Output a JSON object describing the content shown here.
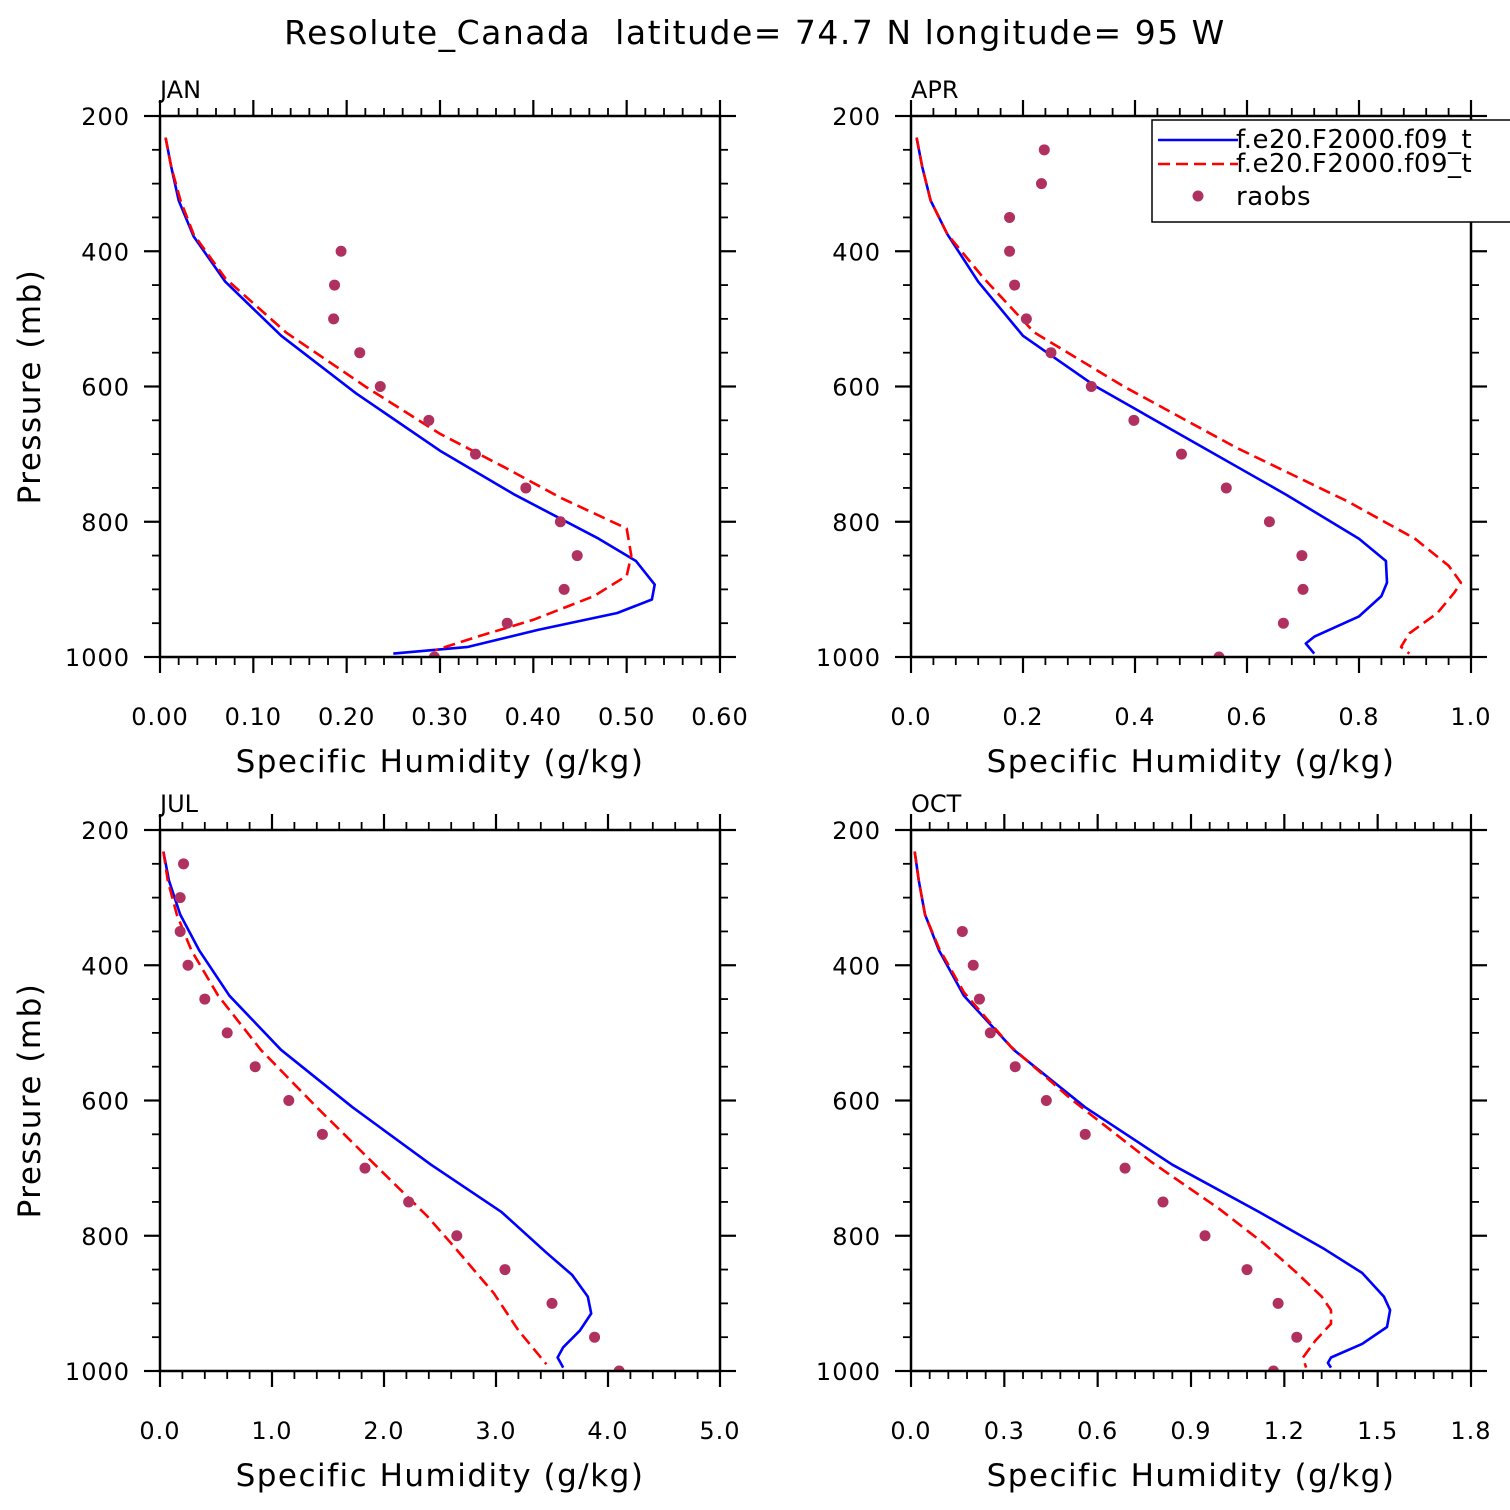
{
  "title": "Resolute_Canada  latitude= 74.7 N longitude= 95 W",
  "colors": {
    "model_1": "#0000ff",
    "model_2": "#ff0000",
    "raobs": "#b03060"
  },
  "legend": {
    "entries": [
      "f.e20.F2000.f09_t",
      "f.e20.F2000.f09_t",
      "raobs"
    ]
  },
  "chart_data": [
    {
      "type": "line",
      "panel": "JAN",
      "xlabel": "Specific Humidity (g/kg)",
      "ylabel": "Pressure (mb)",
      "xlim": [
        0,
        0.6
      ],
      "ylim": [
        1000,
        200
      ],
      "xticks": [
        "0.00",
        "0.10",
        "0.20",
        "0.30",
        "0.40",
        "0.50",
        "0.60"
      ],
      "xtick_values": [
        0,
        0.1,
        0.2,
        0.3,
        0.4,
        0.5,
        0.6
      ],
      "yticks": [
        "200",
        "400",
        "600",
        "800",
        "1000"
      ],
      "ytick_values": [
        200,
        400,
        600,
        800,
        1000
      ],
      "series": [
        {
          "name": "f.e20.F2000.f09_t",
          "style": "solid",
          "x": [
            0.006,
            0.012,
            0.02,
            0.036,
            0.07,
            0.13,
            0.21,
            0.3,
            0.38,
            0.47,
            0.51,
            0.53,
            0.527,
            0.49,
            0.405,
            0.33,
            0.25
          ],
          "y": [
            232,
            275,
            325,
            378,
            445,
            525,
            610,
            695,
            760,
            825,
            858,
            893,
            915,
            935,
            960,
            985,
            995
          ]
        },
        {
          "name": "f.e20.F2000.f09_t",
          "style": "dashed",
          "x": [
            0.006,
            0.012,
            0.022,
            0.036,
            0.07,
            0.135,
            0.22,
            0.3,
            0.37,
            0.43,
            0.5,
            0.505,
            0.5,
            0.465,
            0.4,
            0.34,
            0.295
          ],
          "y": [
            232,
            275,
            325,
            375,
            440,
            520,
            600,
            670,
            720,
            765,
            810,
            850,
            880,
            910,
            945,
            970,
            990
          ]
        },
        {
          "name": "raobs",
          "style": "markers",
          "x": [
            0.194,
            0.187,
            0.186,
            0.214,
            0.236,
            0.288,
            0.338,
            0.392,
            0.429,
            0.447,
            0.433,
            0.372,
            0.294
          ],
          "y": [
            400,
            450,
            500,
            550,
            600,
            650,
            700,
            750,
            800,
            850,
            900,
            950,
            1000
          ]
        }
      ]
    },
    {
      "type": "line",
      "panel": "APR",
      "xlabel": "Specific Humidity (g/kg)",
      "ylabel": "",
      "xlim": [
        0,
        1.0
      ],
      "ylim": [
        1000,
        200
      ],
      "xticks": [
        "0.0",
        "0.2",
        "0.4",
        "0.6",
        "0.8",
        "1.0"
      ],
      "xtick_values": [
        0,
        0.2,
        0.4,
        0.6,
        0.8,
        1.0
      ],
      "yticks": [
        "200",
        "400",
        "600",
        "800",
        "1000"
      ],
      "ytick_values": [
        200,
        400,
        600,
        800,
        1000
      ],
      "series": [
        {
          "name": "f.e20.F2000.f09_t",
          "style": "solid",
          "x": [
            0.01,
            0.02,
            0.035,
            0.065,
            0.12,
            0.2,
            0.33,
            0.5,
            0.67,
            0.8,
            0.848,
            0.85,
            0.84,
            0.8,
            0.72,
            0.705,
            0.72
          ],
          "y": [
            232,
            275,
            325,
            375,
            445,
            525,
            600,
            680,
            760,
            825,
            858,
            890,
            910,
            940,
            970,
            980,
            995
          ]
        },
        {
          "name": "f.e20.F2000.f09_t",
          "style": "dashed",
          "x": [
            0.01,
            0.02,
            0.035,
            0.065,
            0.13,
            0.22,
            0.38,
            0.58,
            0.78,
            0.9,
            0.96,
            0.982,
            0.97,
            0.94,
            0.89,
            0.875,
            0.89
          ],
          "y": [
            232,
            275,
            325,
            375,
            440,
            520,
            600,
            690,
            770,
            825,
            865,
            890,
            905,
            935,
            965,
            985,
            995
          ]
        },
        {
          "name": "raobs",
          "style": "markers",
          "x": [
            0.238,
            0.233,
            0.176,
            0.176,
            0.185,
            0.206,
            0.25,
            0.322,
            0.398,
            0.483,
            0.563,
            0.64,
            0.698,
            0.7,
            0.665,
            0.55
          ],
          "y": [
            250,
            300,
            350,
            400,
            450,
            500,
            550,
            600,
            650,
            700,
            750,
            800,
            850,
            900,
            950,
            1000
          ]
        }
      ]
    },
    {
      "type": "line",
      "panel": "JUL",
      "xlabel": "Specific Humidity (g/kg)",
      "ylabel": "Pressure (mb)",
      "xlim": [
        0,
        5.0
      ],
      "ylim": [
        1000,
        200
      ],
      "xticks": [
        "0.0",
        "1.0",
        "2.0",
        "3.0",
        "4.0",
        "5.0"
      ],
      "xtick_values": [
        0,
        1,
        2,
        3,
        4,
        5
      ],
      "yticks": [
        "200",
        "400",
        "600",
        "800",
        "1000"
      ],
      "ytick_values": [
        200,
        400,
        600,
        800,
        1000
      ],
      "series": [
        {
          "name": "f.e20.F2000.f09_t",
          "style": "solid",
          "x": [
            0.03,
            0.08,
            0.18,
            0.35,
            0.62,
            1.08,
            1.72,
            2.42,
            3.05,
            3.45,
            3.68,
            3.82,
            3.85,
            3.75,
            3.6,
            3.55,
            3.6
          ],
          "y": [
            232,
            275,
            325,
            378,
            445,
            525,
            610,
            695,
            765,
            825,
            858,
            890,
            915,
            940,
            965,
            980,
            995
          ]
        },
        {
          "name": "f.e20.F2000.f09_t",
          "style": "dashed",
          "x": [
            0.03,
            0.07,
            0.15,
            0.28,
            0.52,
            0.9,
            1.4,
            1.95,
            2.38,
            2.62,
            2.8,
            2.98,
            3.1,
            3.2,
            3.35,
            3.45
          ],
          "y": [
            232,
            275,
            325,
            378,
            445,
            525,
            610,
            700,
            770,
            815,
            850,
            885,
            915,
            940,
            970,
            990
          ]
        },
        {
          "name": "raobs",
          "style": "markers",
          "x": [
            0.21,
            0.18,
            0.18,
            0.25,
            0.4,
            0.6,
            0.85,
            1.15,
            1.45,
            1.83,
            2.22,
            2.65,
            3.08,
            3.5,
            3.88,
            4.1
          ],
          "y": [
            250,
            300,
            350,
            400,
            450,
            500,
            550,
            600,
            650,
            700,
            750,
            800,
            850,
            900,
            950,
            1000
          ]
        }
      ]
    },
    {
      "type": "line",
      "panel": "OCT",
      "xlabel": "Specific Humidity (g/kg)",
      "ylabel": "",
      "xlim": [
        0,
        1.8
      ],
      "ylim": [
        1000,
        200
      ],
      "xticks": [
        "0.0",
        "0.3",
        "0.6",
        "0.9",
        "1.2",
        "1.5",
        "1.8"
      ],
      "xtick_values": [
        0,
        0.3,
        0.6,
        0.9,
        1.2,
        1.5,
        1.8
      ],
      "yticks": [
        "200",
        "400",
        "600",
        "800",
        "1000"
      ],
      "ytick_values": [
        200,
        400,
        600,
        800,
        1000
      ],
      "series": [
        {
          "name": "f.e20.F2000.f09_t",
          "style": "solid",
          "x": [
            0.012,
            0.025,
            0.045,
            0.09,
            0.17,
            0.33,
            0.56,
            0.84,
            1.12,
            1.33,
            1.45,
            1.52,
            1.54,
            1.53,
            1.45,
            1.35,
            1.34,
            1.35
          ],
          "y": [
            232,
            275,
            325,
            378,
            445,
            525,
            610,
            695,
            765,
            820,
            855,
            890,
            910,
            935,
            960,
            980,
            988,
            995
          ]
        },
        {
          "name": "f.e20.F2000.f09_t",
          "style": "dashed",
          "x": [
            0.012,
            0.025,
            0.045,
            0.09,
            0.17,
            0.32,
            0.52,
            0.77,
            0.99,
            1.13,
            1.24,
            1.32,
            1.35,
            1.35,
            1.3,
            1.26,
            1.27
          ],
          "y": [
            232,
            275,
            325,
            375,
            440,
            520,
            600,
            690,
            760,
            810,
            855,
            890,
            910,
            930,
            955,
            980,
            995
          ]
        },
        {
          "name": "raobs",
          "style": "markers",
          "x": [
            0.165,
            0.2,
            0.22,
            0.255,
            0.335,
            0.435,
            0.56,
            0.688,
            0.81,
            0.945,
            1.08,
            1.18,
            1.24,
            1.165
          ],
          "y": [
            350,
            400,
            450,
            500,
            550,
            600,
            650,
            700,
            750,
            800,
            850,
            900,
            950,
            1000
          ]
        }
      ]
    }
  ]
}
